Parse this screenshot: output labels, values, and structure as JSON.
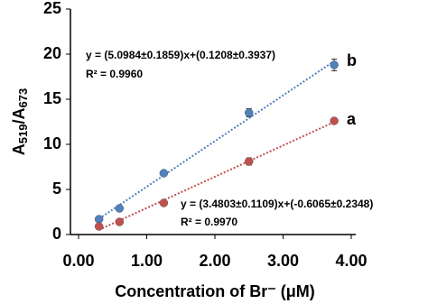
{
  "chart_data": {
    "type": "scatter",
    "xlabel": "Concentration of Br⁻ (μM)",
    "ylabel_parts": [
      "A",
      "519",
      "/A",
      "673"
    ],
    "x": [
      0.3,
      0.6,
      1.25,
      2.5,
      3.75
    ],
    "series": [
      {
        "name": "b",
        "color": "#4f81bd",
        "values": [
          1.7,
          2.9,
          6.8,
          13.5,
          18.8
        ],
        "errors": [
          0.2,
          0.2,
          0.2,
          0.45,
          0.65
        ],
        "equation": "y = (5.0984±0.1859)x+(0.1208±0.3937)",
        "r2": "R² = 0.9960"
      },
      {
        "name": "a",
        "color": "#c0504d",
        "values": [
          0.9,
          1.4,
          3.5,
          8.1,
          12.6
        ],
        "errors": [
          0.2,
          0.2,
          0.2,
          0.4,
          0.25
        ],
        "equation": "y = (3.4803±0.1109)x+(-0.6065±0.2348)",
        "r2": "R² = 0.9970"
      }
    ],
    "trendline": true,
    "xlim": [
      0,
      4
    ],
    "xticks": [
      {
        "value": 0,
        "label": "0.00"
      },
      {
        "value": 1,
        "label": "1.00"
      },
      {
        "value": 2,
        "label": "2.00"
      },
      {
        "value": 3,
        "label": "3.00"
      },
      {
        "value": 4,
        "label": "4.00"
      }
    ],
    "ylim": [
      0,
      25
    ],
    "yticks": [
      0,
      5,
      10,
      15,
      20,
      25
    ]
  }
}
